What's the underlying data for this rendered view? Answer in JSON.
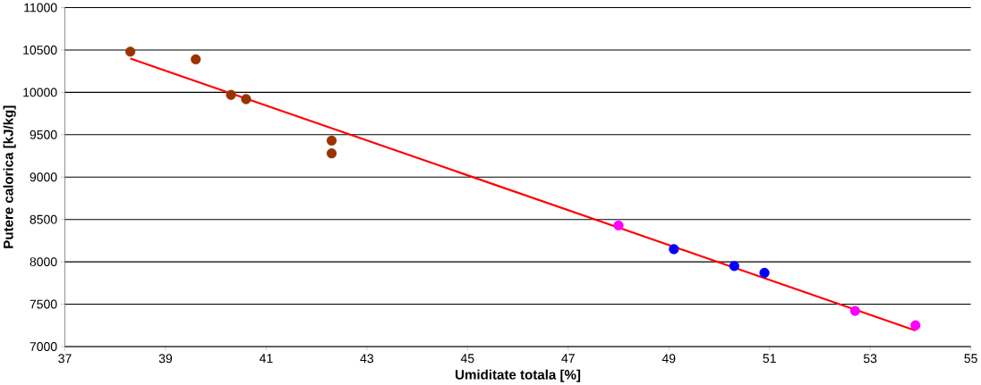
{
  "chart_data": {
    "type": "scatter",
    "xlabel": "Umiditate totala [%]",
    "ylabel": "Putere calorica [kJ/kg]",
    "xlim": [
      37,
      55
    ],
    "ylim": [
      7000,
      11000
    ],
    "xticks": [
      37,
      39,
      41,
      43,
      45,
      47,
      49,
      51,
      53,
      55
    ],
    "yticks": [
      7000,
      7500,
      8000,
      8500,
      9000,
      9500,
      10000,
      10500,
      11000
    ],
    "grid": "y",
    "marker": "circle",
    "series": [
      {
        "color": "#993300",
        "x": [
          38.3,
          39.6,
          40.3,
          40.6,
          42.3,
          42.3
        ],
        "values": [
          10480,
          10390,
          9970,
          9920,
          9430,
          9280
        ]
      },
      {
        "color": "#ff00ff",
        "x": [
          48.0,
          52.7,
          53.9
        ],
        "values": [
          8430,
          7420,
          7250
        ]
      },
      {
        "color": "#0000ff",
        "x": [
          49.1,
          50.3,
          50.9
        ],
        "values": [
          8150,
          7950,
          7870
        ]
      },
      {
        "type": "line",
        "color": "#ff0000",
        "marker": "none",
        "x": [
          38.3,
          53.9
        ],
        "values": [
          10400,
          7190
        ]
      }
    ]
  }
}
